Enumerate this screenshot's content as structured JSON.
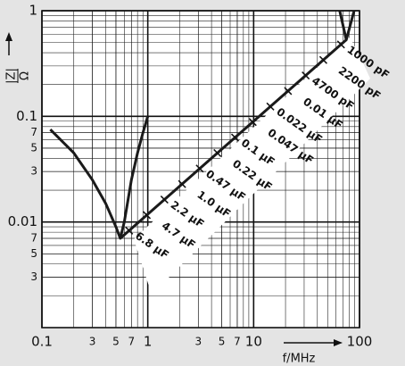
{
  "chart_data": {
    "type": "line",
    "log_x": true,
    "log_y": true,
    "grid": true,
    "xlim": [
      0.1,
      100
    ],
    "ylim": [
      0.001,
      1
    ],
    "xticks": [
      0.1,
      {
        "value": 0.3,
        "label": "3"
      },
      {
        "value": 0.5,
        "label": "5"
      },
      {
        "value": 0.7,
        "label": "7"
      },
      1,
      {
        "value": 3,
        "label": "3"
      },
      {
        "value": 5,
        "label": "5"
      },
      {
        "value": 7,
        "label": "7"
      },
      10,
      100
    ],
    "yticks": [
      1,
      0.1,
      {
        "value": 0.07,
        "label": "7"
      },
      {
        "value": 0.05,
        "label": "5"
      },
      {
        "value": 0.03,
        "label": "3"
      },
      0.01,
      {
        "value": 0.007,
        "label": "7"
      },
      {
        "value": 0.005,
        "label": "5"
      },
      {
        "value": 0.003,
        "label": "3"
      }
    ],
    "x_minor_grid": [
      0.2,
      0.3,
      0.4,
      0.5,
      0.6,
      0.7,
      0.8,
      0.9,
      2,
      3,
      4,
      5,
      6,
      7,
      8,
      9,
      20,
      30,
      40,
      50,
      60,
      70,
      80,
      90
    ],
    "y_minor_grid": [
      0.002,
      0.003,
      0.004,
      0.005,
      0.006,
      0.007,
      0.008,
      0.009,
      0.02,
      0.03,
      0.04,
      0.05,
      0.06,
      0.07,
      0.08,
      0.09,
      0.2,
      0.3,
      0.4,
      0.5,
      0.6,
      0.7,
      0.8,
      0.9
    ],
    "xlabel": "f/MHz",
    "ylabel_num": "|Z|",
    "ylabel_den": "Ω",
    "series": [
      {
        "color": "#1a1a1a",
        "x": [
          0.12,
          0.2,
          0.3,
          0.4,
          0.5,
          0.55,
          0.6,
          0.7,
          0.8,
          0.9,
          1.0
        ],
        "values": [
          0.075,
          0.045,
          0.025,
          0.015,
          0.009,
          0.007,
          0.01,
          0.025,
          0.045,
          0.07,
          0.1
        ]
      },
      {
        "color": "#1a1a1a",
        "x": [
          0.55,
          75
        ],
        "values": [
          0.007,
          0.53
        ]
      },
      {
        "color": "#1a1a1a",
        "x": [
          65,
          75,
          89
        ],
        "values": [
          1,
          0.53,
          1
        ]
      }
    ],
    "annotations": [
      "1000 pF",
      "2200 pF",
      "4700 pF",
      "0.01 μF",
      "0.022 μF",
      "0.047 μF",
      "0.1 μF",
      "0.22 μF",
      "0.47 μF",
      "1.0 μF",
      "2.2 μF",
      "4.7 μF",
      "6.8 μF"
    ]
  }
}
